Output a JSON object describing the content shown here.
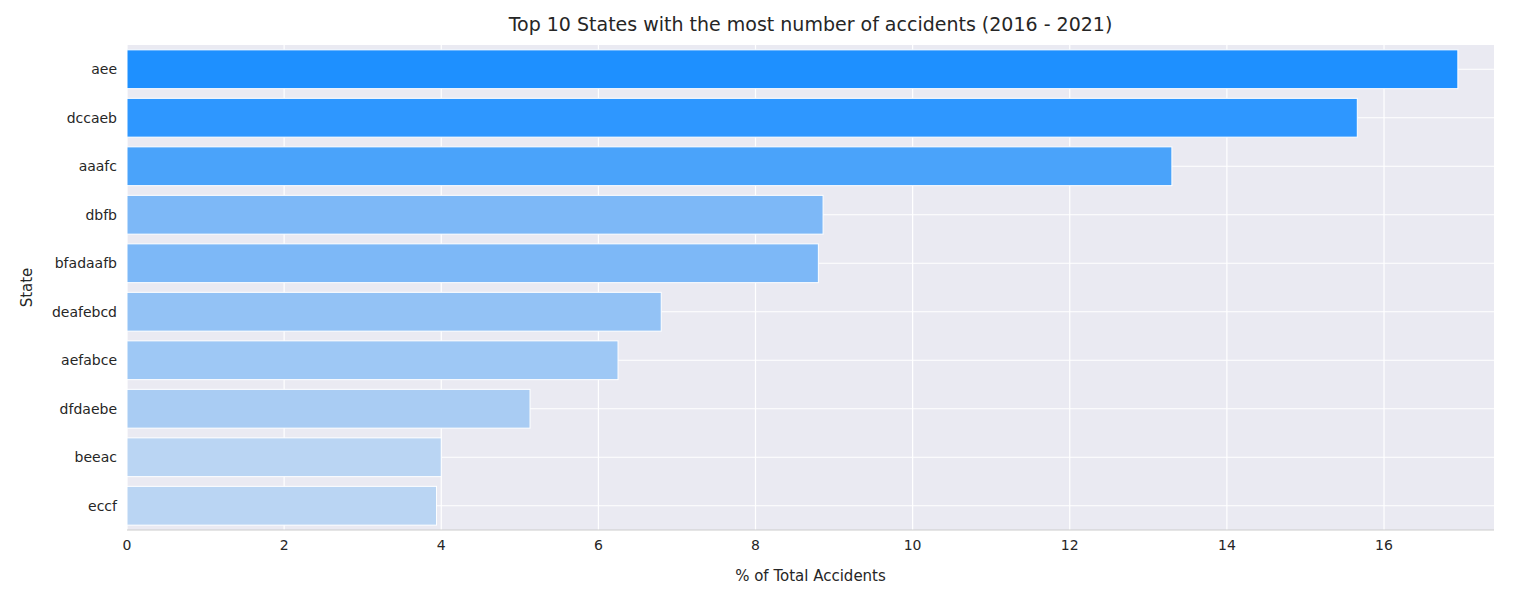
{
  "chart_data": {
    "type": "bar",
    "orientation": "horizontal",
    "title": "Top 10 States with the most number of accidents (2016 - 2021)",
    "x_label": "% of Total Accidents",
    "y_label": "State",
    "categories": [
      "aee",
      "dccaeb",
      "aaafc",
      "dbfb",
      "bfadaafb",
      "deafebcd",
      "aefabce",
      "dfdaebe",
      "beeac",
      "eccf"
    ],
    "values": [
      16.94,
      15.66,
      13.3,
      8.86,
      8.8,
      6.8,
      6.25,
      5.13,
      4.0,
      3.94
    ],
    "colors": [
      "#1e90ff",
      "#2e97ff",
      "#4aa3fa",
      "#7db8f7",
      "#7db8f7",
      "#93c2f5",
      "#9ec8f5",
      "#a9ccf3",
      "#bad5f3",
      "#bad5f3"
    ],
    "xlim": [
      0,
      17.4
    ],
    "xticks": [
      0,
      2,
      4,
      6,
      8,
      10,
      12,
      14,
      16
    ],
    "grid": true
  }
}
